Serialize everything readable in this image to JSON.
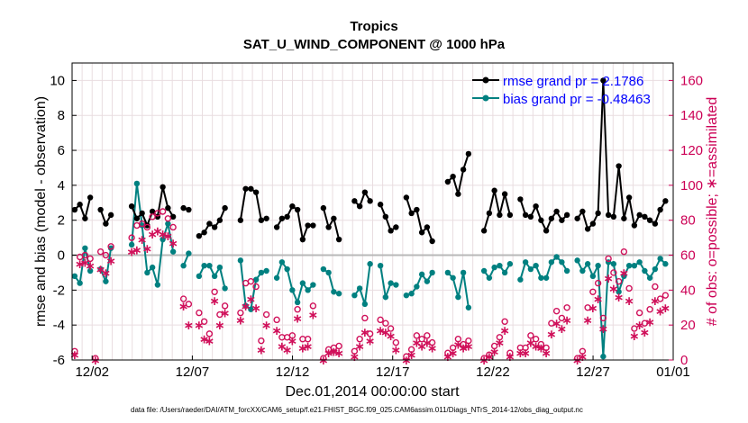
{
  "chart_data": {
    "type": "line",
    "title": "Tropics",
    "subtitle": "SAT_U_WIND_COMPONENT @ 1000 hPa",
    "xlabel": "Dec.01,2014 00:00:00 start",
    "ylabel": "rmse and bias (model - observation)",
    "y2label": "# of obs: o=possible; ∗=assimilated",
    "footnote": "data file: /Users/raeder/DAI/ATM_forcXX/CAM6_setup/f.e21.FHIST_BGC.f09_025.CAM6assim.011/Diags_NTrS_2014-12/obs_diag_output.nc",
    "xlim": [
      0,
      60
    ],
    "ylim": [
      -6,
      11
    ],
    "y2lim": [
      0,
      170
    ],
    "x_tick_positions": [
      2,
      12,
      22,
      32,
      42,
      52,
      60
    ],
    "x_tick_labels": [
      "12/02",
      "12/07",
      "12/12",
      "12/17",
      "12/22",
      "12/27",
      "01/01"
    ],
    "y_ticks": [
      -6,
      -4,
      -2,
      0,
      2,
      4,
      6,
      8,
      10
    ],
    "y2_ticks": [
      0,
      20,
      40,
      60,
      80,
      100,
      120,
      140,
      160
    ],
    "grid": true,
    "legend_position": "top-right",
    "x_units_note": "x values are in 12-hour analysis cycles since Dec.01 00:00",
    "colors": {
      "rmse": "#000000",
      "bias": "#008080",
      "obs": "#d0105a",
      "zero": "#b8b8b8"
    },
    "series": [
      {
        "name": "rmse",
        "label": "rmse grand pr = 2.1786",
        "color": "#000000",
        "values": [
          2.6,
          2.9,
          2.1,
          3.3,
          null,
          2.6,
          1.8,
          2.3,
          null,
          null,
          null,
          2.8,
          2.1,
          2.4,
          1.7,
          2.5,
          2.2,
          3.9,
          2.7,
          2.2,
          null,
          2.7,
          2.6,
          null,
          1.1,
          1.3,
          1.8,
          1.6,
          2.0,
          2.7,
          null,
          null,
          2.0,
          3.8,
          3.8,
          3.6,
          2.0,
          2.1,
          null,
          1.6,
          2.1,
          2.2,
          2.8,
          2.6,
          0.9,
          1.7,
          1.7,
          null,
          2.7,
          1.6,
          2.1,
          0.9,
          null,
          null,
          3.1,
          2.8,
          3.6,
          3.1,
          null,
          2.9,
          2.2,
          1.4,
          1.6,
          null,
          3.3,
          2.4,
          2.6,
          1.3,
          1.6,
          0.8,
          null,
          null,
          4.2,
          4.5,
          3.5,
          4.9,
          5.8,
          null,
          null,
          1.4,
          2.4,
          3.7,
          2.3,
          3.5,
          2.3,
          null,
          3.2,
          2.3,
          2.2,
          2.8,
          2.0,
          1.4,
          2.1,
          2.5,
          2.0,
          2.3,
          null,
          2.1,
          2.5,
          1.5,
          1.8,
          2.4,
          10.0,
          2.3,
          2.2,
          5.1,
          2.1,
          3.3,
          1.7,
          2.3,
          2.2,
          2.0,
          1.8,
          2.6,
          3.1,
          null
        ]
      },
      {
        "name": "bias",
        "label": "bias grand pr = -0.48463",
        "color": "#008080",
        "values": [
          -1.2,
          -1.6,
          0.4,
          -0.9,
          null,
          -0.8,
          -1.5,
          0.4,
          null,
          null,
          null,
          0.6,
          4.1,
          1.7,
          -1.0,
          -0.7,
          -1.7,
          0.9,
          1.8,
          0.2,
          null,
          -0.6,
          0.1,
          null,
          -1.2,
          -0.6,
          -0.6,
          -1.2,
          -0.7,
          -1.9,
          null,
          null,
          -0.3,
          -2.9,
          -3.1,
          -1.4,
          -1.0,
          -0.9,
          null,
          -1.3,
          -0.4,
          -0.8,
          -2.0,
          -2.7,
          -1.6,
          -2.0,
          -1.7,
          null,
          -0.8,
          -1.0,
          -2.1,
          -2.2,
          null,
          null,
          -2.3,
          -1.9,
          -2.8,
          -0.5,
          null,
          -0.6,
          -2.4,
          -1.6,
          -1.7,
          null,
          -2.3,
          -2.2,
          -1.8,
          -1.1,
          -1.5,
          -1.0,
          null,
          null,
          -1.0,
          -1.3,
          -2.4,
          -1.0,
          -3.0,
          null,
          null,
          -0.9,
          -1.3,
          -0.7,
          -0.6,
          -1.0,
          -0.5,
          null,
          -1.4,
          -0.4,
          -0.8,
          -0.6,
          -1.3,
          -1.3,
          -0.4,
          -0.1,
          -0.4,
          -0.9,
          null,
          -0.3,
          -0.9,
          -0.5,
          -1.2,
          -0.6,
          -5.8,
          -0.4,
          -0.5,
          -2.1,
          -1.2,
          -0.6,
          -0.6,
          -0.4,
          -0.9,
          -1.3,
          -0.8,
          -0.2,
          -0.5,
          null
        ]
      },
      {
        "name": "obs_possible",
        "label": "o=possible",
        "color": "#d0105a",
        "axis": "right",
        "values": [
          5,
          59,
          60,
          58,
          1,
          62,
          60,
          65,
          null,
          null,
          null,
          70,
          77,
          78,
          76,
          82,
          84,
          85,
          81,
          76,
          null,
          35,
          32,
          null,
          27,
          22,
          15,
          39,
          26,
          31,
          null,
          null,
          27,
          44,
          45,
          42,
          11,
          26,
          null,
          23,
          13,
          13,
          14,
          29,
          12,
          12,
          31,
          null,
          1,
          6,
          7,
          8,
          null,
          null,
          5,
          12,
          24,
          15,
          null,
          23,
          21,
          18,
          10,
          null,
          2,
          6,
          14,
          12,
          14,
          10,
          null,
          null,
          4,
          7,
          12,
          9,
          11,
          null,
          null,
          1,
          3,
          8,
          13,
          22,
          4,
          null,
          7,
          7,
          14,
          12,
          9,
          7,
          21,
          28,
          24,
          30,
          null,
          1,
          5,
          30,
          39,
          44,
          24,
          58,
          50,
          45,
          62,
          41,
          18,
          27,
          21,
          29,
          42,
          35,
          37,
          null
        ]
      },
      {
        "name": "obs_assimilated",
        "label": "∗=assimilated",
        "color": "#d0105a",
        "axis": "right",
        "values": [
          3,
          55,
          56,
          54,
          0,
          52,
          50,
          57,
          null,
          null,
          null,
          62,
          63,
          69,
          64,
          72,
          74,
          72,
          71,
          67,
          null,
          31,
          20,
          null,
          20,
          12,
          11,
          34,
          20,
          27,
          null,
          null,
          23,
          31,
          35,
          30,
          6,
          20,
          null,
          17,
          8,
          6,
          11,
          24,
          7,
          8,
          26,
          null,
          0,
          4,
          5,
          4,
          null,
          null,
          2,
          8,
          16,
          11,
          null,
          17,
          16,
          14,
          6,
          null,
          0,
          3,
          10,
          8,
          10,
          7,
          null,
          null,
          2,
          4,
          9,
          7,
          8,
          null,
          null,
          0,
          2,
          5,
          10,
          17,
          2,
          null,
          4,
          4,
          10,
          8,
          7,
          4,
          15,
          21,
          18,
          23,
          null,
          0,
          2,
          23,
          30,
          35,
          18,
          47,
          41,
          36,
          50,
          34,
          14,
          20,
          16,
          22,
          34,
          28,
          30,
          null
        ]
      }
    ]
  }
}
